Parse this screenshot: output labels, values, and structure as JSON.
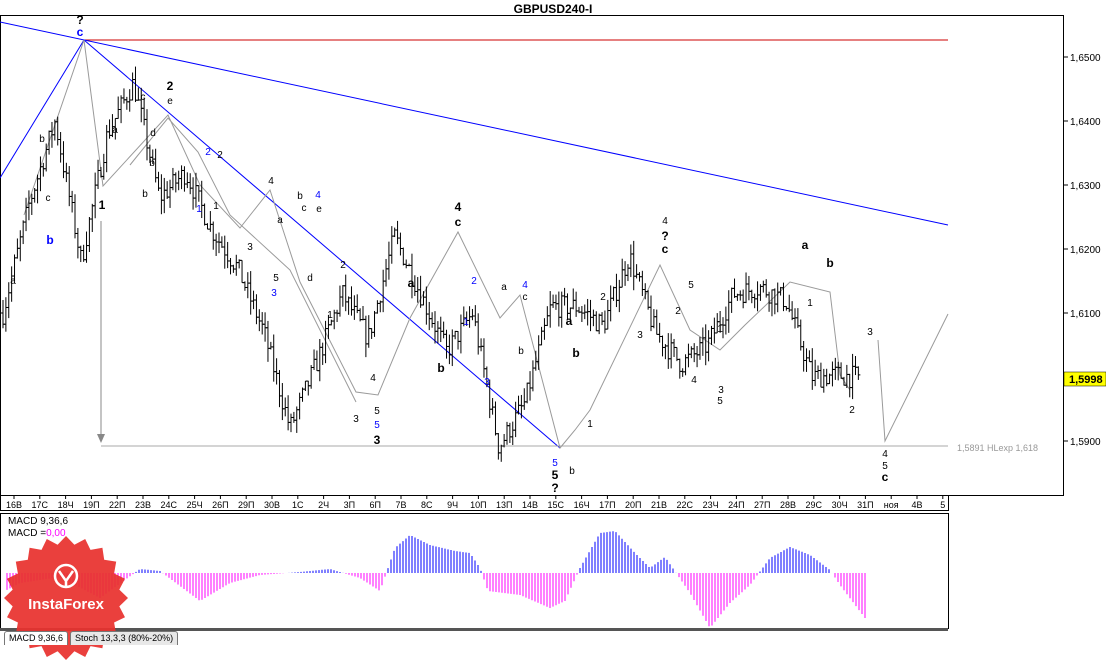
{
  "window": {
    "title": "GBPUSD240-I"
  },
  "brand": {
    "name": "InstaForex",
    "color": "#e8322e"
  },
  "price_tag": {
    "value": "1,5998"
  },
  "projection": {
    "label": "1,5891 HLexp 1,618"
  },
  "indicators": {
    "macd_label": "MACD 9,36,6",
    "macd_value_prefix": "MACD =",
    "macd_value": "0,00"
  },
  "tabs": [
    {
      "label": "MACD 9,36,6"
    },
    {
      "label": "Stoch 13,3,3 (80%-20%)"
    }
  ],
  "colors": {
    "wave_blue": "#0000ff",
    "resistance_red": "#cc0000",
    "histogram_positive": "#0000ff",
    "histogram_negative": "#ff00ff",
    "price_tag_bg": "#ffff00"
  },
  "chart_data": {
    "type": "candlestick",
    "title": "GBPUSD240-I",
    "ylim": [
      1.583,
      1.657
    ],
    "y_ticks": [
      "1,6500",
      "1,6400",
      "1,6300",
      "1,6200",
      "1,6100",
      "1,5900"
    ],
    "y_tick_values": [
      1.65,
      1.64,
      1.63,
      1.62,
      1.61,
      1.59
    ],
    "x_tick_labels": [
      "16В",
      "17С",
      "18Ч",
      "19П",
      "22П",
      "23В",
      "24С",
      "25Ч",
      "26П",
      "29П",
      "30В",
      "1С",
      "2Ч",
      "3П",
      "6П",
      "7В",
      "8С",
      "9Ч",
      "10П",
      "13П",
      "14В",
      "15С",
      "16Ч",
      "17П",
      "20П",
      "21В",
      "22С",
      "23Ч",
      "24П",
      "27П",
      "28В",
      "29С",
      "30Ч",
      "31П",
      "ноя",
      "4В",
      "5"
    ],
    "price_path": [
      1.61,
      1.627,
      1.64,
      1.618,
      1.638,
      1.646,
      1.628,
      1.632,
      1.623,
      1.617,
      1.607,
      1.592,
      1.602,
      1.613,
      1.606,
      1.622,
      1.613,
      1.604,
      1.61,
      1.589,
      1.596,
      1.611,
      1.611,
      1.608,
      1.619,
      1.607,
      1.602,
      1.605,
      1.613,
      1.614,
      1.612,
      1.6,
      1.6003,
      1.5998
    ],
    "last_price": 1.5998,
    "wave_labels": [
      {
        "text": "?",
        "color": "#000000",
        "bold": true
      },
      {
        "text": "c",
        "color": "#0000ff",
        "bold": true
      },
      {
        "text": "a",
        "color": "#000000"
      },
      {
        "text": "b",
        "color": "#000000"
      },
      {
        "text": "c",
        "color": "#000000"
      },
      {
        "text": "b",
        "color": "#0000ff",
        "bold": true
      },
      {
        "text": "b",
        "color": "#000000"
      },
      {
        "text": "1",
        "color": "#000000",
        "bold": true
      },
      {
        "text": "a",
        "color": "#000000"
      },
      {
        "text": "c",
        "color": "#000000"
      },
      {
        "text": "2",
        "color": "#000000",
        "bold": true
      },
      {
        "text": "e",
        "color": "#000000"
      },
      {
        "text": "b",
        "color": "#000000"
      },
      {
        "text": "d",
        "color": "#000000"
      },
      {
        "text": "2",
        "color": "#0000ff"
      },
      {
        "text": "2",
        "color": "#000000"
      },
      {
        "text": "1",
        "color": "#0000ff"
      },
      {
        "text": "1",
        "color": "#000000"
      },
      {
        "text": "3",
        "color": "#000000"
      },
      {
        "text": "4",
        "color": "#000000"
      },
      {
        "text": "a",
        "color": "#000000"
      },
      {
        "text": "5",
        "color": "#000000"
      },
      {
        "text": "3",
        "color": "#0000ff"
      },
      {
        "text": "b",
        "color": "#000000"
      },
      {
        "text": "4",
        "color": "#0000ff"
      },
      {
        "text": "c",
        "color": "#000000"
      },
      {
        "text": "e",
        "color": "#000000"
      },
      {
        "text": "d",
        "color": "#000000"
      },
      {
        "text": "2",
        "color": "#000000"
      },
      {
        "text": "1",
        "color": "#000000"
      },
      {
        "text": "4",
        "color": "#000000"
      },
      {
        "text": "3",
        "color": "#000000"
      },
      {
        "text": "5",
        "color": "#000000"
      },
      {
        "text": "5",
        "color": "#0000ff"
      },
      {
        "text": "3",
        "color": "#000000",
        "bold": true
      },
      {
        "text": "a",
        "color": "#000000",
        "bold": true
      },
      {
        "text": "b",
        "color": "#000000",
        "bold": true
      },
      {
        "text": "4",
        "color": "#000000",
        "bold": true
      },
      {
        "text": "c",
        "color": "#000000",
        "bold": true
      },
      {
        "text": "2",
        "color": "#0000ff"
      },
      {
        "text": "1",
        "color": "#0000ff"
      },
      {
        "text": "3",
        "color": "#0000ff"
      },
      {
        "text": "a",
        "color": "#000000"
      },
      {
        "text": "b",
        "color": "#000000"
      },
      {
        "text": "4",
        "color": "#0000ff"
      },
      {
        "text": "c",
        "color": "#000000"
      },
      {
        "text": "b",
        "color": "#000000"
      },
      {
        "text": "5",
        "color": "#0000ff"
      },
      {
        "text": "5",
        "color": "#000000",
        "bold": true
      },
      {
        "text": "?",
        "color": "#000000",
        "bold": true
      },
      {
        "text": "a",
        "color": "#000000",
        "bold": true
      },
      {
        "text": "b",
        "color": "#000000",
        "bold": true
      },
      {
        "text": "1",
        "color": "#000000"
      },
      {
        "text": "2",
        "color": "#000000"
      },
      {
        "text": "3",
        "color": "#000000"
      },
      {
        "text": "4",
        "color": "#000000"
      },
      {
        "text": "?",
        "color": "#000000",
        "bold": true
      },
      {
        "text": "c",
        "color": "#000000",
        "bold": true
      },
      {
        "text": "5",
        "color": "#000000"
      },
      {
        "text": "2",
        "color": "#000000"
      },
      {
        "text": "1",
        "color": "#000000"
      },
      {
        "text": "4",
        "color": "#000000"
      },
      {
        "text": "3",
        "color": "#000000"
      },
      {
        "text": "5",
        "color": "#000000"
      },
      {
        "text": "a",
        "color": "#000000",
        "bold": true
      },
      {
        "text": "b",
        "color": "#000000",
        "bold": true
      },
      {
        "text": "1",
        "color": "#000000"
      },
      {
        "text": "2",
        "color": "#000000"
      },
      {
        "text": "3",
        "color": "#000000"
      },
      {
        "text": "4",
        "color": "#000000"
      },
      {
        "text": "5",
        "color": "#000000"
      },
      {
        "text": "c",
        "color": "#000000",
        "bold": true
      },
      {
        "text": "?",
        "color": "#000000",
        "bold": true
      }
    ]
  }
}
